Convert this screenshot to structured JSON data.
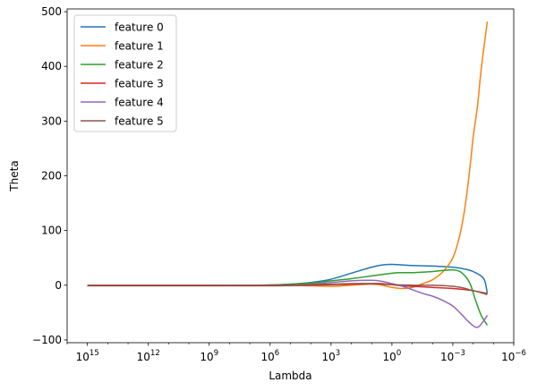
{
  "chart_data": {
    "type": "line",
    "title": "",
    "xlabel": "Lambda",
    "ylabel": "Theta",
    "x_scale": "log",
    "x_direction": "decreasing",
    "xlim": [
      1e+16,
      1e-06
    ],
    "ylim": [
      -105,
      505
    ],
    "grid": false,
    "legend_position": "top-left",
    "x_ticks": [
      {
        "value": 1000000000000000.0,
        "base": "10",
        "exp": "15"
      },
      {
        "value": 1000000000000.0,
        "base": "10",
        "exp": "12"
      },
      {
        "value": 1000000000.0,
        "base": "10",
        "exp": "9"
      },
      {
        "value": 1000000.0,
        "base": "10",
        "exp": "6"
      },
      {
        "value": 1000.0,
        "base": "10",
        "exp": "3"
      },
      {
        "value": 1,
        "base": "10",
        "exp": "0"
      },
      {
        "value": 0.001,
        "base": "10",
        "exp": "−3"
      },
      {
        "value": 1e-06,
        "base": "10",
        "exp": "−6"
      }
    ],
    "y_ticks": [
      {
        "value": -100,
        "label": "−100"
      },
      {
        "value": 0,
        "label": "0"
      },
      {
        "value": 100,
        "label": "100"
      },
      {
        "value": 200,
        "label": "200"
      },
      {
        "value": 300,
        "label": "300"
      },
      {
        "value": 400,
        "label": "400"
      },
      {
        "value": 500,
        "label": "500"
      }
    ],
    "series": [
      {
        "name": "feature 0",
        "color": "#1f77b4",
        "points": [
          [
            1000000000000000.0,
            0
          ],
          [
            1000000000000.0,
            0
          ],
          [
            1000000000.0,
            0
          ],
          [
            10000000.0,
            0.1
          ],
          [
            1000000.0,
            0.5
          ],
          [
            100000.0,
            2
          ],
          [
            10000.0,
            5
          ],
          [
            1000.0,
            11
          ],
          [
            100.0,
            22
          ],
          [
            10.0,
            33
          ],
          [
            3,
            37
          ],
          [
            1,
            38
          ],
          [
            0.3,
            37
          ],
          [
            0.1,
            36
          ],
          [
            0.01,
            35
          ],
          [
            0.001,
            33
          ],
          [
            0.0003,
            30
          ],
          [
            0.0001,
            25
          ],
          [
            3e-05,
            12
          ],
          [
            2e-05,
            -15
          ]
        ]
      },
      {
        "name": "feature 1",
        "color": "#ff7f0e",
        "points": [
          [
            1000000000000000.0,
            0
          ],
          [
            1000000000000.0,
            0
          ],
          [
            1000000000.0,
            0
          ],
          [
            1000000.0,
            0
          ],
          [
            100000.0,
            0
          ],
          [
            10000.0,
            -1
          ],
          [
            1000.0,
            -2
          ],
          [
            100.0,
            0
          ],
          [
            10.0,
            2
          ],
          [
            3,
            0
          ],
          [
            1,
            -4
          ],
          [
            0.3,
            -6
          ],
          [
            0.1,
            -4
          ],
          [
            0.03,
            3
          ],
          [
            0.01,
            10
          ],
          [
            0.003,
            25
          ],
          [
            0.001,
            50
          ],
          [
            0.0005,
            85
          ],
          [
            0.0003,
            125
          ],
          [
            0.0002,
            170
          ],
          [
            0.00013,
            230
          ],
          [
            0.0001,
            270
          ],
          [
            6e-05,
            330
          ],
          [
            4e-05,
            395
          ],
          [
            2e-05,
            482
          ]
        ]
      },
      {
        "name": "feature 2",
        "color": "#2ca02c",
        "points": [
          [
            1000000000000000.0,
            0
          ],
          [
            1000000000000.0,
            0
          ],
          [
            1000000000.0,
            0
          ],
          [
            10000000.0,
            0
          ],
          [
            1000000.0,
            0.5
          ],
          [
            100000.0,
            2
          ],
          [
            10000.0,
            4
          ],
          [
            1000.0,
            8
          ],
          [
            100.0,
            12
          ],
          [
            10.0,
            17
          ],
          [
            1,
            22
          ],
          [
            0.3,
            23
          ],
          [
            0.1,
            23
          ],
          [
            0.03,
            24
          ],
          [
            0.01,
            25
          ],
          [
            0.003,
            27
          ],
          [
            0.001,
            28
          ],
          [
            0.0004,
            24
          ],
          [
            0.00015,
            5
          ],
          [
            8e-05,
            -25
          ],
          [
            4e-05,
            -55
          ],
          [
            2e-05,
            -73
          ]
        ]
      },
      {
        "name": "feature 3",
        "color": "#d62728",
        "points": [
          [
            1000000000000000.0,
            -1
          ],
          [
            1000000000000.0,
            -1
          ],
          [
            1000000000.0,
            -1
          ],
          [
            1000000.0,
            -1
          ],
          [
            10000.0,
            0
          ],
          [
            1000.0,
            1
          ],
          [
            100.0,
            2
          ],
          [
            10.0,
            3
          ],
          [
            3,
            3
          ],
          [
            1,
            1
          ],
          [
            0.3,
            -1
          ],
          [
            0.1,
            -2
          ],
          [
            0.01,
            -4
          ],
          [
            0.001,
            -6
          ],
          [
            0.0001,
            -10
          ],
          [
            2e-05,
            -17
          ]
        ]
      },
      {
        "name": "feature 4",
        "color": "#9467bd",
        "points": [
          [
            1000000000000000.0,
            0
          ],
          [
            1000000000000.0,
            0
          ],
          [
            1000000000.0,
            0
          ],
          [
            1000000.0,
            0
          ],
          [
            100000.0,
            0
          ],
          [
            10000.0,
            2
          ],
          [
            1000.0,
            5
          ],
          [
            100.0,
            8
          ],
          [
            10.0,
            9
          ],
          [
            3,
            7
          ],
          [
            1,
            3
          ],
          [
            0.3,
            -2
          ],
          [
            0.1,
            -8
          ],
          [
            0.03,
            -15
          ],
          [
            0.01,
            -20
          ],
          [
            0.003,
            -28
          ],
          [
            0.001,
            -38
          ],
          [
            0.0004,
            -52
          ],
          [
            0.0002,
            -64
          ],
          [
            0.0001,
            -74
          ],
          [
            7e-05,
            -77
          ],
          [
            5e-05,
            -75
          ],
          [
            3e-05,
            -65
          ],
          [
            2e-05,
            -55
          ]
        ]
      },
      {
        "name": "feature 5",
        "color": "#8c564b",
        "points": [
          [
            1000000000000000.0,
            0
          ],
          [
            1000000000000.0,
            0
          ],
          [
            1000000000.0,
            0
          ],
          [
            1000000.0,
            0
          ],
          [
            10000.0,
            1
          ],
          [
            1000.0,
            2
          ],
          [
            100.0,
            3
          ],
          [
            10.0,
            3
          ],
          [
            3,
            2
          ],
          [
            1,
            1
          ],
          [
            0.1,
            0
          ],
          [
            0.01,
            0
          ],
          [
            0.001,
            -2
          ],
          [
            0.0003,
            -5
          ],
          [
            0.0001,
            -10
          ],
          [
            2e-05,
            -15
          ]
        ]
      }
    ]
  }
}
